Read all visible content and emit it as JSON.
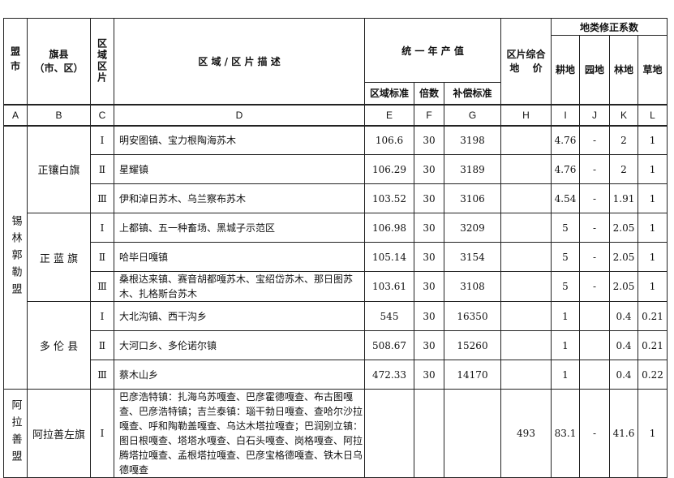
{
  "header": {
    "league": "盟市",
    "county": "旗县\n（市、区）",
    "zone": "区域区片",
    "description": "区 域 / 区 片 描 述",
    "annual_output": "统 一 年 产 值",
    "zone_standard": "区域标准",
    "multiple": "倍数",
    "compensation": "补偿标准",
    "land_price": "区片综合\n地　 价",
    "coefficients": "地类修正系数",
    "arable": "耕地",
    "garden": "园地",
    "forest": "林地",
    "grass": "草地"
  },
  "letters": [
    "A",
    "B",
    "C",
    "D",
    "E",
    "F",
    "G",
    "H",
    "I",
    "J",
    "K",
    "L"
  ],
  "groups": [
    {
      "league": "锡林郭勒盟",
      "counties": [
        {
          "name": "正镶白旗",
          "rows": [
            {
              "zone": "Ⅰ",
              "desc": "明安图镇、宝力根陶海苏木",
              "e": "106.6",
              "f": "30",
              "g": "3198",
              "h": "",
              "i": "4.76",
              "j": "-",
              "k": "2",
              "l": "1"
            },
            {
              "zone": "Ⅱ",
              "desc": "星耀镇",
              "e": "106.29",
              "f": "30",
              "g": "3189",
              "h": "",
              "i": "4.76",
              "j": "-",
              "k": "2",
              "l": "1"
            },
            {
              "zone": "Ⅲ",
              "desc": "伊和淖日苏木、乌兰察布苏木",
              "e": "103.52",
              "f": "30",
              "g": "3106",
              "h": "",
              "i": "4.54",
              "j": "-",
              "k": "1.91",
              "l": "1"
            }
          ]
        },
        {
          "name": "正 蓝 旗",
          "rows": [
            {
              "zone": "Ⅰ",
              "desc": "上都镇、五一种畜场、黑城子示范区",
              "e": "106.98",
              "f": "30",
              "g": "3209",
              "h": "",
              "i": "5",
              "j": "-",
              "k": "2.05",
              "l": "1"
            },
            {
              "zone": "Ⅱ",
              "desc": "哈毕日嘎镇",
              "e": "105.14",
              "f": "30",
              "g": "3154",
              "h": "",
              "i": "5",
              "j": "-",
              "k": "2.05",
              "l": "1"
            },
            {
              "zone": "Ⅲ",
              "desc": "桑根达来镇、赛音胡都嘎苏木、宝绍岱苏木、那日图苏木、扎格斯台苏木",
              "e": "103.61",
              "f": "30",
              "g": "3108",
              "h": "",
              "i": "5",
              "j": "-",
              "k": "2.05",
              "l": "1"
            }
          ]
        },
        {
          "name": "多 伦 县",
          "rows": [
            {
              "zone": "Ⅰ",
              "desc": "大北沟镇、西干沟乡",
              "e": "545",
              "f": "30",
              "g": "16350",
              "h": "",
              "i": "1",
              "j": "",
              "k": "0.4",
              "l": "0.21"
            },
            {
              "zone": "Ⅱ",
              "desc": "大河口乡、多伦诺尔镇",
              "e": "508.67",
              "f": "30",
              "g": "15260",
              "h": "",
              "i": "1",
              "j": "",
              "k": "0.4",
              "l": "0.21"
            },
            {
              "zone": "Ⅲ",
              "desc": "蔡木山乡",
              "e": "472.33",
              "f": "30",
              "g": "14170",
              "h": "",
              "i": "1",
              "j": "",
              "k": "0.4",
              "l": "0.22"
            }
          ]
        }
      ]
    },
    {
      "league": "阿拉善盟",
      "counties": [
        {
          "name": "阿拉善左旗",
          "rows": [
            {
              "zone": "Ⅰ",
              "desc": "巴彦浩特镇：扎海乌苏嘎查、巴彦霍德嘎查、布古图嘎查、巴彦浩特镇；吉兰泰镇：瑙干勃日嘎查、查哈尔沙拉嘎查、呼和陶勒盖嘎查、乌达木塔拉嘎查；巴润别立镇：图日根嘎查、塔塔水嘎查、白石头嘎查、岗格嘎查、阿拉腾塔拉嘎查、孟根塔拉嘎查、巴彦宝格德嘎查、铁木日乌德嘎查",
              "e": "",
              "f": "",
              "g": "",
              "h": "493",
              "i": "83.1",
              "j": "-",
              "k": "41.6",
              "l": "1"
            }
          ]
        }
      ]
    }
  ]
}
